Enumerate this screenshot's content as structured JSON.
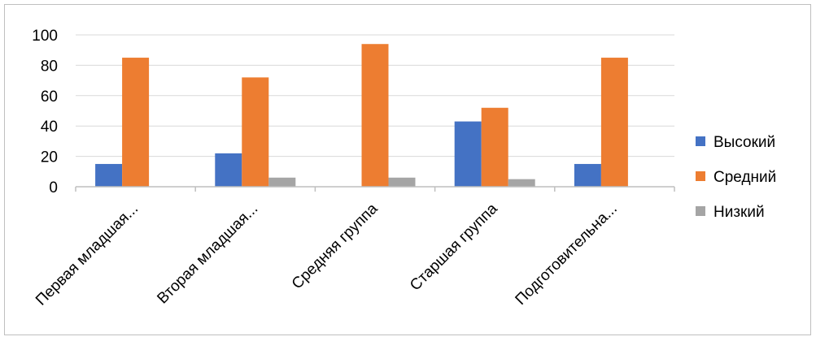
{
  "chart_data": {
    "type": "bar",
    "title": "",
    "xlabel": "",
    "ylabel": "",
    "categories": [
      "Первая младшая...",
      "Вторая младшая...",
      "Средняя группа",
      "Старшая группа",
      "Подготовительна..."
    ],
    "series": [
      {
        "name": "Высокий",
        "color": "#4472C4",
        "values": [
          15,
          22,
          0,
          43,
          15
        ]
      },
      {
        "name": "Средний",
        "color": "#ED7D31",
        "values": [
          85,
          72,
          94,
          52,
          85
        ]
      },
      {
        "name": "Низкий",
        "color": "#A5A5A5",
        "values": [
          0,
          6,
          6,
          5,
          0
        ]
      }
    ],
    "ylim": [
      0,
      100
    ],
    "yticks": [
      0,
      20,
      40,
      60,
      80,
      100
    ],
    "grid": true,
    "legend_position": "right"
  }
}
